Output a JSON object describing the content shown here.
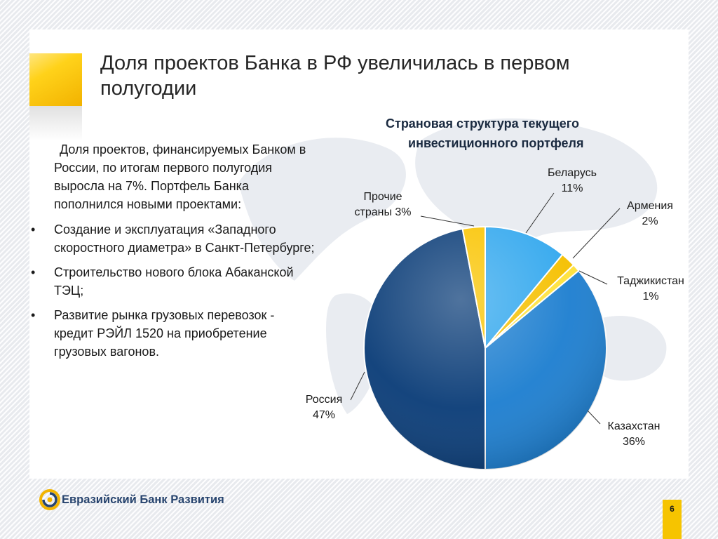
{
  "slide": {
    "title": "Доля проектов Банка в РФ увеличилась в первом полугодии",
    "intro": "Доля проектов, финансируемых Банком в России, по итогам первого полугодия выросла на 7%. Портфель Банка пополнился новыми проектами:",
    "bullet_glyph": "•",
    "bullets": [
      "Создание и эксплуатация «Западного скоростного диаметра» в Санкт-Петербурге;",
      "Строительство нового блока Абаканской ТЭЦ;",
      "Развитие рынка грузовых перевозок - кредит РЭЙЛ 1520 на приобретение грузовых вагонов."
    ],
    "logo_text": "Евразийский Банк Развития",
    "page_number": "6"
  },
  "chart_data": {
    "type": "pie",
    "title_lines": [
      "Страновая структура текущего",
      "инвестиционного портфеля"
    ],
    "start_angle_deg": 0,
    "direction": "clockwise",
    "slices": [
      {
        "label_lines": [
          "Беларусь",
          "11%"
        ],
        "value": 11,
        "color": "#33a8ee"
      },
      {
        "label_lines": [
          "Армения",
          "2%"
        ],
        "value": 2,
        "color": "#f5c000"
      },
      {
        "label_lines": [
          "Таджикистан",
          "1%"
        ],
        "value": 1,
        "color": "#ffe23a"
      },
      {
        "label_lines": [
          "Казахстан",
          "36%"
        ],
        "value": 36,
        "color": "#1e7fd0"
      },
      {
        "label_lines": [
          "Россия",
          "47%"
        ],
        "value": 47,
        "color": "#0b3d78"
      },
      {
        "label_lines": [
          "Прочие",
          "страны 3%"
        ],
        "value": 3,
        "color": "#f9c400"
      }
    ]
  },
  "colors": {
    "accent_yellow": "#ffd21a",
    "title_text": "#262626",
    "chart_title_text": "#1a2a40",
    "logo_blue": "#27446e",
    "page_number_bg": "#f6c400"
  },
  "icons": {
    "logo": "ebrd-spiral-logo-icon"
  }
}
